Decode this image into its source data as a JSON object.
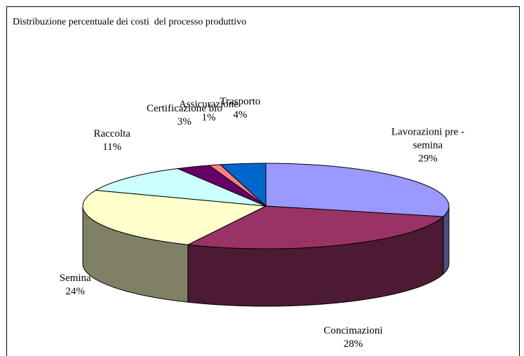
{
  "chart_data": {
    "type": "pie3d",
    "title": "Distribuzione percentuale dei costi  del processo produttivo",
    "categories": [
      "Lavorazioni pre - semina",
      "Concimazioni",
      "Semina",
      "Raccolta",
      "Certificazione bio",
      "Assicurazione",
      "Trasporto"
    ],
    "values": [
      29,
      28,
      24,
      11,
      3,
      1,
      4
    ],
    "value_labels": [
      "29%",
      "28%",
      "24%",
      "11%",
      "3%",
      "1%",
      "4%"
    ],
    "colors": [
      "#9999ff",
      "#993366",
      "#ffffcc",
      "#ccffff",
      "#660066",
      "#ff8080",
      "#0066cc"
    ]
  }
}
